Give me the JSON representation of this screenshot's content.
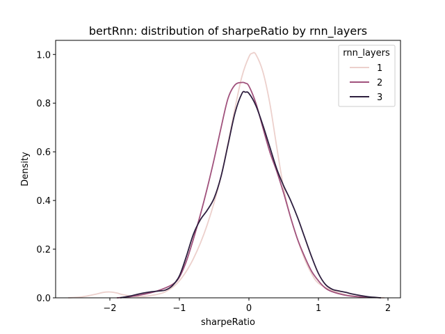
{
  "chart_data": {
    "type": "line",
    "title": "bertRnn: distribution of sharpeRatio by rnn_layers",
    "xlabel": "sharpeRatio",
    "ylabel": "Density",
    "xlim": [
      -2.78,
      2.18
    ],
    "ylim": [
      0.0,
      1.058
    ],
    "xticks": [
      -2,
      -1,
      0,
      1,
      2
    ],
    "xtick_labels": [
      "−2",
      "−1",
      "0",
      "1",
      "2"
    ],
    "yticks": [
      0.0,
      0.2,
      0.4,
      0.6,
      0.8,
      1.0
    ],
    "ytick_labels": [
      "0.0",
      "0.2",
      "0.4",
      "0.6",
      "0.8",
      "1.0"
    ],
    "grid": false,
    "legend": {
      "title": "rnn_layers",
      "placement": "top-right"
    },
    "series": [
      {
        "name": "1",
        "color": "#ecd0cc",
        "x": [
          -2.6,
          -2.4,
          -2.2,
          -2.1,
          -2.0,
          -1.9,
          -1.8,
          -1.6,
          -1.4,
          -1.2,
          -1.0,
          -0.8,
          -0.6,
          -0.4,
          -0.2,
          -0.1,
          0.0,
          0.05,
          0.1,
          0.2,
          0.3,
          0.4,
          0.5,
          0.6,
          0.7,
          0.8,
          0.9,
          1.0,
          1.2,
          1.4,
          1.6,
          1.8,
          1.95
        ],
        "y": [
          0.0,
          0.004,
          0.015,
          0.022,
          0.024,
          0.02,
          0.012,
          0.005,
          0.01,
          0.025,
          0.07,
          0.16,
          0.3,
          0.5,
          0.78,
          0.91,
          0.99,
          1.005,
          1.0,
          0.93,
          0.8,
          0.62,
          0.45,
          0.33,
          0.24,
          0.16,
          0.1,
          0.06,
          0.03,
          0.012,
          0.004,
          0.001,
          0.0
        ]
      },
      {
        "name": "2",
        "color": "#a0517c",
        "x": [
          -1.9,
          -1.7,
          -1.5,
          -1.3,
          -1.1,
          -1.0,
          -0.9,
          -0.8,
          -0.7,
          -0.6,
          -0.5,
          -0.4,
          -0.3,
          -0.2,
          -0.1,
          -0.05,
          0.0,
          0.1,
          0.2,
          0.3,
          0.4,
          0.5,
          0.6,
          0.7,
          0.8,
          0.9,
          1.0,
          1.1,
          1.2,
          1.4,
          1.6,
          1.8
        ],
        "y": [
          0.0,
          0.005,
          0.015,
          0.03,
          0.055,
          0.085,
          0.15,
          0.24,
          0.34,
          0.45,
          0.57,
          0.7,
          0.82,
          0.875,
          0.885,
          0.882,
          0.87,
          0.8,
          0.7,
          0.6,
          0.52,
          0.43,
          0.33,
          0.24,
          0.17,
          0.11,
          0.07,
          0.04,
          0.025,
          0.01,
          0.004,
          0.001
        ]
      },
      {
        "name": "3",
        "color": "#2d1e3e",
        "x": [
          -1.85,
          -1.7,
          -1.55,
          -1.4,
          -1.3,
          -1.2,
          -1.1,
          -1.0,
          -0.9,
          -0.8,
          -0.7,
          -0.6,
          -0.5,
          -0.4,
          -0.3,
          -0.2,
          -0.1,
          -0.05,
          0.0,
          0.1,
          0.2,
          0.3,
          0.4,
          0.5,
          0.6,
          0.7,
          0.8,
          0.9,
          1.0,
          1.1,
          1.2,
          1.3,
          1.4,
          1.5,
          1.7,
          1.9
        ],
        "y": [
          0.0,
          0.008,
          0.018,
          0.025,
          0.028,
          0.032,
          0.05,
          0.09,
          0.17,
          0.26,
          0.32,
          0.36,
          0.41,
          0.5,
          0.63,
          0.76,
          0.84,
          0.845,
          0.84,
          0.79,
          0.71,
          0.62,
          0.53,
          0.46,
          0.4,
          0.33,
          0.25,
          0.17,
          0.1,
          0.055,
          0.035,
          0.028,
          0.022,
          0.015,
          0.005,
          0.0
        ]
      }
    ]
  }
}
